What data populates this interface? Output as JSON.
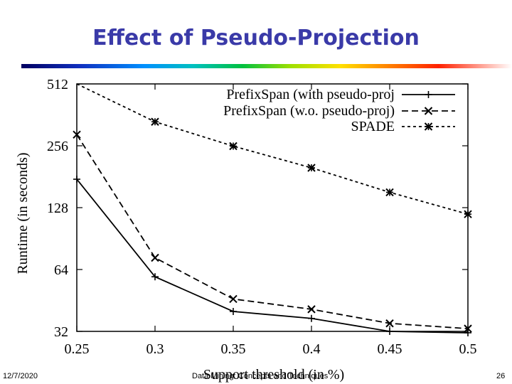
{
  "slide": {
    "title": "Effect of Pseudo-Projection",
    "footer_date": "12/7/2020",
    "footer_text": "Data Mining: Concepts and Techniques",
    "page_number": "26"
  },
  "colors": {
    "title": "#3a3aa8",
    "axes": "#000000"
  },
  "chart_data": {
    "type": "line",
    "title": "",
    "xlabel": "Support threshold (in %)",
    "ylabel": "Runtime (in seconds)",
    "yscale": "log2",
    "xlim": [
      0.25,
      0.5
    ],
    "ylim": [
      32,
      512
    ],
    "x": [
      0.25,
      0.3,
      0.35,
      0.4,
      0.45,
      0.5
    ],
    "x_tick_labels": [
      "0.25",
      "0.3",
      "0.35",
      "0.4",
      "0.45",
      "0.5"
    ],
    "y_ticks": [
      32,
      64,
      128,
      256,
      512
    ],
    "y_tick_labels": [
      "32",
      "64",
      "128",
      "256",
      "512"
    ],
    "legend_position": "top-right",
    "series": [
      {
        "name": "PrefixSpan (with pseudo-proj",
        "style": "solid",
        "marker": "plus",
        "values": [
          176,
          59,
          40,
          37,
          32,
          31.5
        ]
      },
      {
        "name": "PrefixSpan (w.o. pseudo-proj)",
        "style": "dashed",
        "marker": "cross",
        "values": [
          290,
          73,
          46,
          41,
          35,
          33
        ]
      },
      {
        "name": "SPADE",
        "style": "dotted",
        "marker": "star",
        "values": [
          512,
          335,
          255,
          200,
          152,
          119
        ]
      }
    ]
  }
}
